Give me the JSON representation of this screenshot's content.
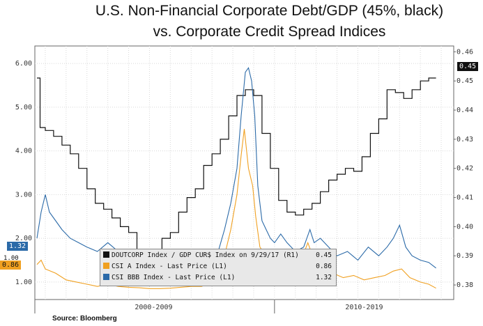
{
  "title_line1": "U.S. Non-Financial Corporate Debt/GDP (45%, black)",
  "title_line2": "vs. Corporate Credit Spread Indices",
  "source": "Source: Bloomberg",
  "legend": [
    {
      "label": "DOUTCORP Index / GDP CUR$ Index on 9/29/17 (R1)",
      "value": "0.45",
      "color": "#111111"
    },
    {
      "label": "CSI A Index - Last Price (L1)",
      "value": "0.86",
      "color": "#f0a020"
    },
    {
      "label": "CSI BBB Index - Last Price (L1)",
      "value": "1.32",
      "color": "#2b6aa8"
    }
  ],
  "badges": {
    "left_bbb": "1.32",
    "left_a": "0.86",
    "left_hidden": "1.00",
    "right_debt": "0.45"
  },
  "chart_data": {
    "type": "line",
    "x_labels": [
      "2000-2009",
      "2010-2019"
    ],
    "y_left": {
      "ticks": [
        "1.00",
        "2.00",
        "3.00",
        "4.00",
        "5.00",
        "6.00"
      ],
      "range": [
        0.6,
        6.4
      ]
    },
    "y_right": {
      "ticks": [
        "0.38",
        "0.39",
        "0.40",
        "0.41",
        "0.42",
        "0.43",
        "0.44",
        "0.45",
        "0.46"
      ],
      "range": [
        0.375,
        0.462
      ]
    },
    "x_range": [
      1998.5,
      2018.6
    ],
    "series": [
      {
        "name": "DOUTCORP Index / GDP CUR$ Index on 9/29/17 (R1)",
        "axis": "right",
        "step": true,
        "color": "#111111",
        "x": [
          1998.6,
          1998.75,
          1999.0,
          1999.4,
          1999.8,
          2000.2,
          2000.6,
          2001.0,
          2001.4,
          2001.8,
          2002.2,
          2002.6,
          2003.0,
          2003.4,
          2003.8,
          2004.2,
          2004.6,
          2005.0,
          2005.4,
          2005.8,
          2006.2,
          2006.6,
          2007.0,
          2007.4,
          2007.8,
          2008.2,
          2008.6,
          2009.0,
          2009.4,
          2009.8,
          2010.2,
          2010.6,
          2011.0,
          2011.4,
          2011.8,
          2012.2,
          2012.6,
          2013.0,
          2013.4,
          2013.8,
          2014.2,
          2014.6,
          2015.0,
          2015.4,
          2015.8,
          2016.2,
          2016.6,
          2017.0,
          2017.4,
          2017.75
        ],
        "y": [
          0.451,
          0.434,
          0.433,
          0.431,
          0.428,
          0.425,
          0.42,
          0.413,
          0.408,
          0.406,
          0.403,
          0.4,
          0.398,
          0.392,
          0.391,
          0.392,
          0.396,
          0.398,
          0.405,
          0.41,
          0.413,
          0.421,
          0.425,
          0.43,
          0.438,
          0.445,
          0.447,
          0.445,
          0.432,
          0.42,
          0.409,
          0.405,
          0.404,
          0.406,
          0.408,
          0.412,
          0.416,
          0.418,
          0.42,
          0.419,
          0.424,
          0.432,
          0.437,
          0.447,
          0.446,
          0.444,
          0.447,
          0.45,
          0.451,
          0.451
        ]
      },
      {
        "name": "CSI BBB Index - Last Price (L1)",
        "axis": "left",
        "step": false,
        "color": "#2b6aa8",
        "x": [
          1998.6,
          1998.8,
          1999.0,
          1999.2,
          1999.5,
          1999.8,
          2000.2,
          2000.6,
          2001.0,
          2001.5,
          2002.0,
          2002.5,
          2002.9,
          2003.3,
          2003.7,
          2004.0,
          2004.5,
          2005.0,
          2005.5,
          2006.0,
          2006.5,
          2007.0,
          2007.3,
          2007.6,
          2007.9,
          2008.2,
          2008.4,
          2008.6,
          2008.75,
          2008.9,
          2009.05,
          2009.2,
          2009.4,
          2009.6,
          2009.8,
          2010.0,
          2010.3,
          2010.6,
          2011.0,
          2011.4,
          2011.7,
          2011.9,
          2012.2,
          2012.6,
          2013.0,
          2013.5,
          2014.0,
          2014.5,
          2015.0,
          2015.4,
          2015.7,
          2016.0,
          2016.3,
          2016.6,
          2017.0,
          2017.4,
          2017.75
        ],
        "y": [
          2.0,
          2.6,
          3.0,
          2.6,
          2.4,
          2.2,
          2.0,
          1.9,
          1.8,
          1.7,
          1.9,
          1.7,
          1.5,
          1.4,
          1.35,
          1.3,
          1.25,
          1.3,
          1.4,
          1.35,
          1.4,
          1.5,
          1.7,
          2.2,
          2.8,
          3.6,
          4.8,
          5.8,
          5.9,
          5.6,
          4.8,
          3.2,
          2.4,
          2.2,
          2.0,
          1.9,
          2.1,
          1.9,
          1.7,
          1.8,
          2.2,
          1.9,
          2.0,
          1.8,
          1.6,
          1.7,
          1.5,
          1.8,
          1.6,
          1.8,
          2.0,
          2.3,
          1.8,
          1.6,
          1.5,
          1.45,
          1.32
        ]
      },
      {
        "name": "CSI A Index - Last Price (L1)",
        "axis": "left",
        "step": false,
        "color": "#f0a020",
        "x": [
          1998.6,
          1998.8,
          1999.0,
          1999.5,
          2000.0,
          2000.5,
          2001.0,
          2001.5,
          2002.0,
          2002.5,
          2003.0,
          2003.5,
          2004.0,
          2004.5,
          2005.0,
          2005.5,
          2006.0,
          2006.5,
          2007.0,
          2007.3,
          2007.6,
          2007.9,
          2008.2,
          2008.4,
          2008.55,
          2008.75,
          2008.95,
          2009.1,
          2009.3,
          2009.6,
          2010.0,
          2010.4,
          2010.8,
          2011.2,
          2011.6,
          2011.9,
          2012.3,
          2012.8,
          2013.3,
          2013.8,
          2014.3,
          2014.8,
          2015.3,
          2015.7,
          2016.1,
          2016.5,
          2017.0,
          2017.4,
          2017.75
        ],
        "y": [
          1.4,
          1.5,
          1.3,
          1.2,
          1.05,
          1.0,
          0.95,
          0.9,
          0.95,
          0.9,
          0.88,
          0.87,
          0.85,
          0.85,
          0.86,
          0.88,
          0.9,
          0.9,
          1.0,
          1.2,
          1.6,
          2.2,
          3.0,
          3.9,
          4.5,
          3.6,
          3.2,
          2.5,
          1.8,
          1.6,
          1.5,
          1.7,
          1.5,
          1.4,
          1.9,
          1.5,
          1.4,
          1.2,
          1.1,
          1.15,
          1.05,
          1.1,
          1.15,
          1.25,
          1.3,
          1.1,
          1.0,
          0.95,
          0.86
        ]
      }
    ]
  }
}
